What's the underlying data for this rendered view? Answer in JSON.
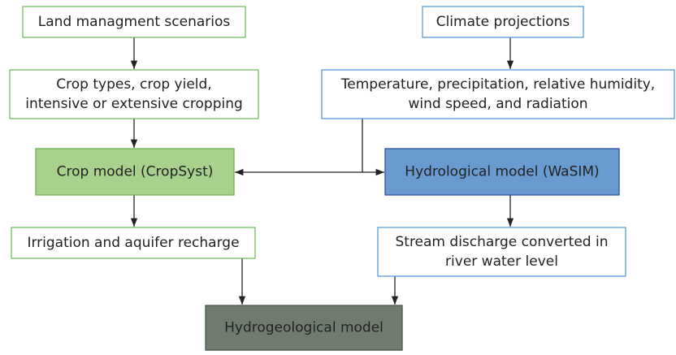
{
  "nodes": [
    {
      "lines": [
        "Land managment scenarios"
      ]
    },
    {
      "lines": [
        "Crop types, crop yield,",
        "intensive or extensive cropping"
      ]
    },
    {
      "lines": [
        "Crop model (CropSyst)"
      ]
    },
    {
      "lines": [
        "Irrigation and aquifer recharge"
      ]
    },
    {
      "lines": [
        "Climate projections"
      ]
    },
    {
      "lines": [
        "Temperature, precipitation, relative humidity,",
        "wind speed, and radiation"
      ]
    },
    {
      "lines": [
        "Hydrological model (WaSIM)"
      ]
    },
    {
      "lines": [
        "Stream discharge converted in",
        "river water level"
      ]
    },
    {
      "lines": [
        "Hydrogeological model"
      ]
    }
  ]
}
